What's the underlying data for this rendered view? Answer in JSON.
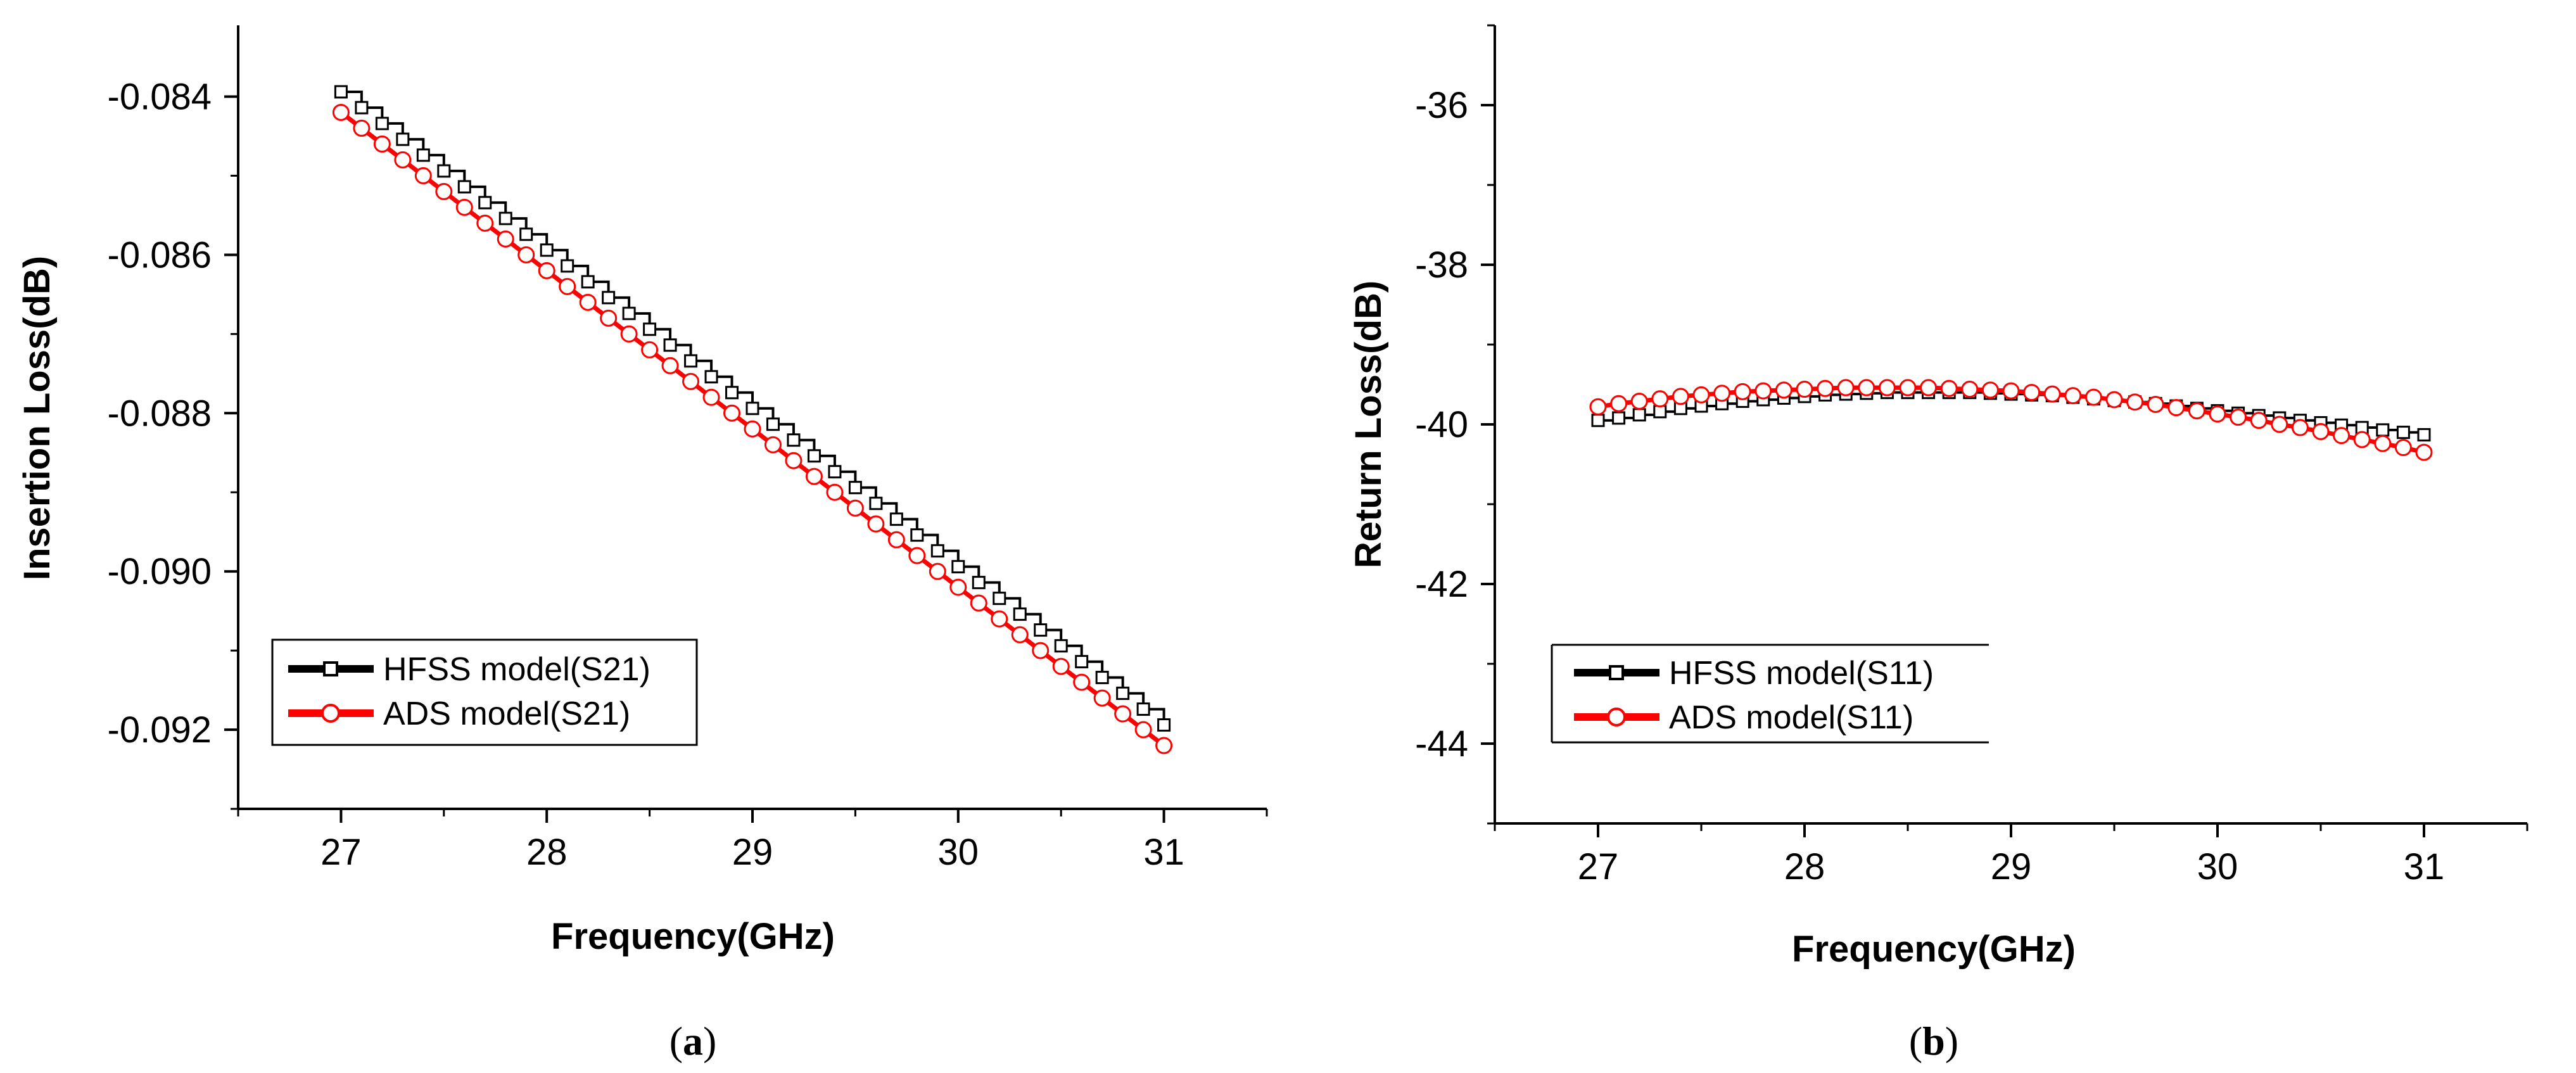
{
  "colors": {
    "hfss": "#000000",
    "ads": "#ff0000"
  },
  "captions": [
    {
      "open": "(",
      "letter": "a",
      "close": ")"
    },
    {
      "open": "(",
      "letter": "b",
      "close": ")"
    }
  ],
  "chart_data": [
    {
      "type": "line",
      "xlabel": "Frequency(GHz)",
      "ylabel": "Insertion Loss(dB)",
      "xlim": [
        26.5,
        31.5
      ],
      "ylim": [
        -0.093,
        -0.0831
      ],
      "xticks": [
        27,
        28,
        29,
        30,
        31
      ],
      "xtick_labels": [
        "27",
        "28",
        "29",
        "30",
        "31"
      ],
      "yticks": [
        -0.084,
        -0.086,
        -0.088,
        -0.09,
        -0.092
      ],
      "ytick_labels": [
        "-0.084",
        "-0.086",
        "-0.088",
        "-0.090",
        "-0.092"
      ],
      "grid": false,
      "legend_position": "lower-left",
      "series": [
        {
          "name": "HFSS model(S21)",
          "color": "#000000",
          "marker": "square",
          "step": true,
          "x": [
            27.0,
            27.1,
            27.2,
            27.3,
            27.4,
            27.5,
            27.6,
            27.7,
            27.8,
            27.9,
            28.0,
            28.1,
            28.2,
            28.3,
            28.4,
            28.5,
            28.6,
            28.7,
            28.8,
            28.9,
            29.0,
            29.1,
            29.2,
            29.3,
            29.4,
            29.5,
            29.6,
            29.7,
            29.8,
            29.9,
            30.0,
            30.1,
            30.2,
            30.3,
            30.4,
            30.5,
            30.6,
            30.7,
            30.8,
            30.9,
            31.0
          ],
          "y": [
            -0.08394,
            -0.08414,
            -0.08434,
            -0.08454,
            -0.08474,
            -0.08494,
            -0.08514,
            -0.08534,
            -0.08554,
            -0.08574,
            -0.08594,
            -0.08614,
            -0.08634,
            -0.08654,
            -0.08674,
            -0.08694,
            -0.08714,
            -0.08734,
            -0.08754,
            -0.08774,
            -0.08794,
            -0.08814,
            -0.08834,
            -0.08854,
            -0.08874,
            -0.08894,
            -0.08914,
            -0.08934,
            -0.08954,
            -0.08974,
            -0.08994,
            -0.09014,
            -0.09034,
            -0.09054,
            -0.09074,
            -0.09094,
            -0.09114,
            -0.09134,
            -0.09154,
            -0.09174,
            -0.09194
          ]
        },
        {
          "name": "ADS model(S21)",
          "color": "#ff0000",
          "marker": "circle",
          "step": false,
          "x": [
            27.0,
            27.1,
            27.2,
            27.3,
            27.4,
            27.5,
            27.6,
            27.7,
            27.8,
            27.9,
            28.0,
            28.1,
            28.2,
            28.3,
            28.4,
            28.5,
            28.6,
            28.7,
            28.8,
            28.9,
            29.0,
            29.1,
            29.2,
            29.3,
            29.4,
            29.5,
            29.6,
            29.7,
            29.8,
            29.9,
            30.0,
            30.1,
            30.2,
            30.3,
            30.4,
            30.5,
            30.6,
            30.7,
            30.8,
            30.9,
            31.0
          ],
          "y": [
            -0.0842,
            -0.0844,
            -0.0846,
            -0.0848,
            -0.085,
            -0.0852,
            -0.0854,
            -0.0856,
            -0.0858,
            -0.086,
            -0.0862,
            -0.0864,
            -0.0866,
            -0.0868,
            -0.087,
            -0.0872,
            -0.0874,
            -0.0876,
            -0.0878,
            -0.088,
            -0.0882,
            -0.0884,
            -0.0886,
            -0.0888,
            -0.089,
            -0.0892,
            -0.0894,
            -0.0896,
            -0.0898,
            -0.09,
            -0.0902,
            -0.0904,
            -0.0906,
            -0.0908,
            -0.091,
            -0.0912,
            -0.0914,
            -0.0916,
            -0.0918,
            -0.092,
            -0.0922
          ]
        }
      ]
    },
    {
      "type": "line",
      "xlabel": "Frequency(GHz)",
      "ylabel": "Return Loss(dB)",
      "xlim": [
        26.5,
        31.5
      ],
      "ylim": [
        -45,
        -35
      ],
      "xticks": [
        27,
        28,
        29,
        30,
        31
      ],
      "xtick_labels": [
        "27",
        "28",
        "29",
        "30",
        "31"
      ],
      "yticks": [
        -36,
        -38,
        -40,
        -42,
        -44
      ],
      "ytick_labels": [
        "-36",
        "-38",
        "-40",
        "-42",
        "-44"
      ],
      "grid": false,
      "legend_position": "lower-left",
      "series": [
        {
          "name": "HFSS model(S11)",
          "color": "#000000",
          "marker": "square",
          "step": true,
          "x": [
            27.0,
            27.1,
            27.2,
            27.3,
            27.4,
            27.5,
            27.6,
            27.7,
            27.8,
            27.9,
            28.0,
            28.1,
            28.2,
            28.3,
            28.4,
            28.5,
            28.6,
            28.7,
            28.8,
            28.9,
            29.0,
            29.1,
            29.2,
            29.3,
            29.4,
            29.5,
            29.6,
            29.7,
            29.8,
            29.9,
            30.0,
            30.1,
            30.2,
            30.3,
            30.4,
            30.5,
            30.6,
            30.7,
            30.8,
            30.9,
            31.0
          ],
          "y": [
            -39.95,
            -39.92,
            -39.88,
            -39.84,
            -39.8,
            -39.77,
            -39.74,
            -39.71,
            -39.69,
            -39.67,
            -39.65,
            -39.63,
            -39.62,
            -39.61,
            -39.6,
            -39.6,
            -39.6,
            -39.6,
            -39.6,
            -39.61,
            -39.62,
            -39.63,
            -39.64,
            -39.66,
            -39.68,
            -39.7,
            -39.72,
            -39.74,
            -39.77,
            -39.8,
            -39.83,
            -39.86,
            -39.89,
            -39.92,
            -39.95,
            -39.98,
            -40.01,
            -40.04,
            -40.07,
            -40.1,
            -40.13
          ]
        },
        {
          "name": "ADS model(S11)",
          "color": "#ff0000",
          "marker": "circle",
          "step": false,
          "x": [
            27.0,
            27.1,
            27.2,
            27.3,
            27.4,
            27.5,
            27.6,
            27.7,
            27.8,
            27.9,
            28.0,
            28.1,
            28.2,
            28.3,
            28.4,
            28.5,
            28.6,
            28.7,
            28.8,
            28.9,
            29.0,
            29.1,
            29.2,
            29.3,
            29.4,
            29.5,
            29.6,
            29.7,
            29.8,
            29.9,
            30.0,
            30.1,
            30.2,
            30.3,
            30.4,
            30.5,
            30.6,
            30.7,
            30.8,
            30.9,
            31.0
          ],
          "y": [
            -39.78,
            -39.74,
            -39.71,
            -39.68,
            -39.65,
            -39.63,
            -39.61,
            -39.59,
            -39.58,
            -39.57,
            -39.56,
            -39.55,
            -39.54,
            -39.54,
            -39.54,
            -39.54,
            -39.54,
            -39.55,
            -39.56,
            -39.57,
            -39.58,
            -39.6,
            -39.62,
            -39.64,
            -39.66,
            -39.69,
            -39.72,
            -39.75,
            -39.79,
            -39.83,
            -39.87,
            -39.91,
            -39.95,
            -40.0,
            -40.04,
            -40.09,
            -40.14,
            -40.19,
            -40.24,
            -40.29,
            -40.35
          ]
        }
      ]
    }
  ]
}
